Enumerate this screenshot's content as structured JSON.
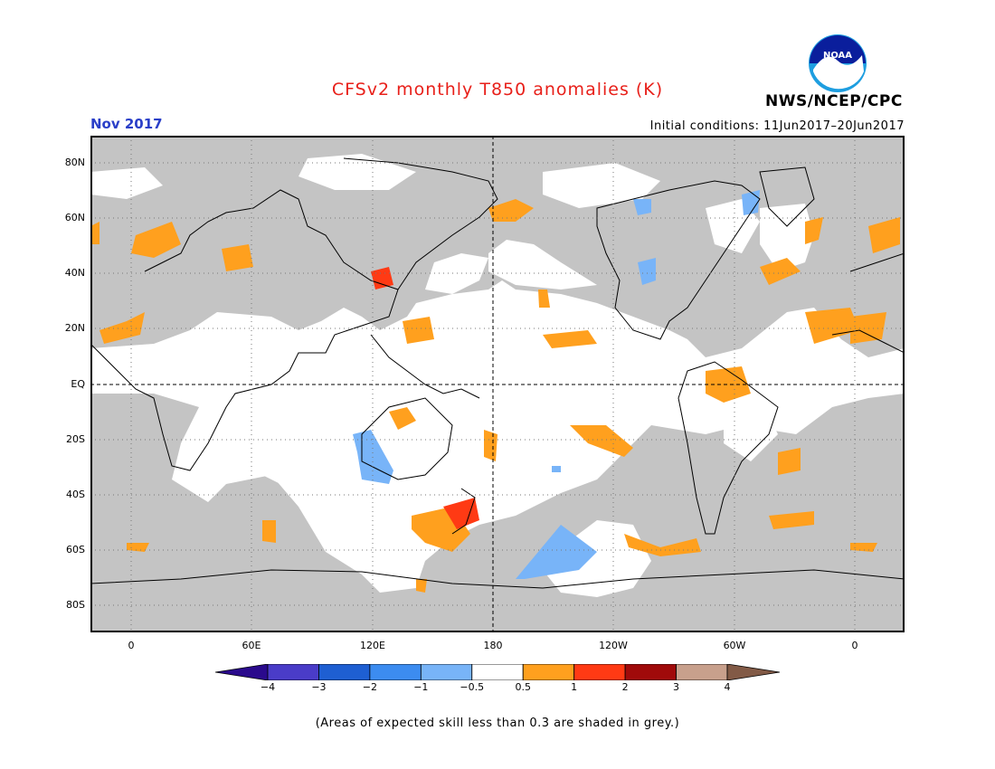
{
  "title": "CFSv2 monthly T850 anomalies (K)",
  "title_color": "#e8201a",
  "period": "Nov 2017",
  "period_color": "#2a3fc8",
  "initial_conditions": "Initial conditions: 11Jun2017–20Jun2017",
  "agency": "NWS/NCEP/CPC",
  "logo": {
    "text": "NOAA",
    "icon": "noaa-logo"
  },
  "footnote": "(Areas of expected skill less than 0.3 are shaded in grey.)",
  "map": {
    "lat_labels": [
      "80N",
      "60N",
      "40N",
      "20N",
      "EQ",
      "20S",
      "40S",
      "60S",
      "80S"
    ],
    "lon_labels": [
      "0",
      "60E",
      "120E",
      "180",
      "120W",
      "60W",
      "0"
    ],
    "grey_skill_color": "#c4c4c4",
    "land_outline_color": "#000000"
  },
  "colorbar": {
    "labels": [
      "−4",
      "−3",
      "−2",
      "−1",
      "−0.5",
      "0.5",
      "1",
      "2",
      "3",
      "4"
    ],
    "colors": [
      "#2a0a8c",
      "#4a3cc8",
      "#1e5fd2",
      "#3c8cf0",
      "#78b4f8",
      "#ffffff",
      "#ffa01e",
      "#ff3a14",
      "#a00a0a",
      "#c8a08c",
      "#825a46"
    ]
  }
}
